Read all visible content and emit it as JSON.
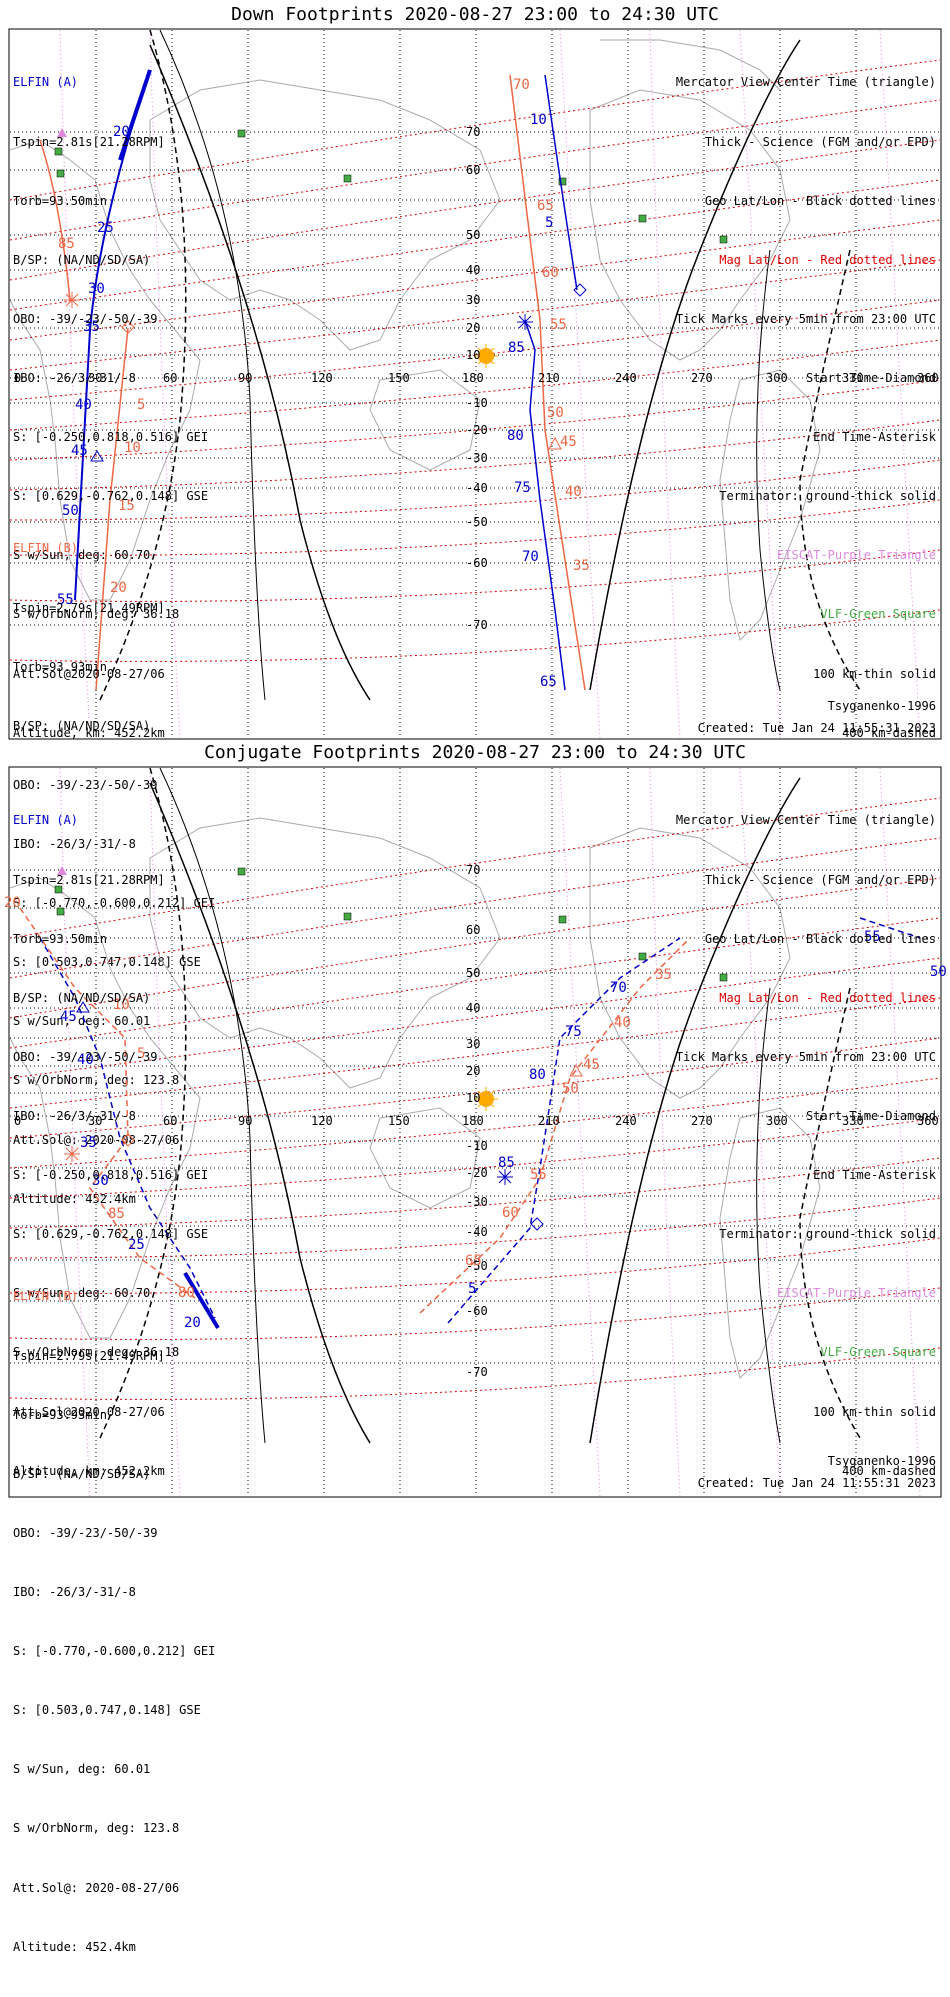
{
  "panels": [
    {
      "title": "Down Footprints 2020-08-27 23:00 to 24:30 UTC",
      "elfin_a": {
        "name": "ELFIN (A)",
        "lines": [
          "Tspin=2.81s[21.28RPM]",
          "Torb=93.50min",
          "B/SP: (NA/ND/SD/SA)",
          "OBO: -39/-23/-50/-39",
          "IBO: -26/3/-31/-8",
          "S: [-0.250,0.818,0.516] GEI",
          "S: [0.629,-0.762,0.148] GSE",
          "S w/Sun, deg: 60.70",
          "S w/OrbNorm, deg: 36.18",
          "Att.Sol@2020-08-27/06",
          "Altitude, km: 452.2km"
        ]
      },
      "elfin_b": {
        "name": "ELFIN (B)",
        "lines": [
          "Tspin=2.79s[21.49RPM]",
          "Torb=93.93min",
          "B/SP: (NA/ND/SD/SA)",
          "OBO: -39/-23/-50/-39",
          "IBO: -26/3/-31/-8",
          "S: [-0.770,-0.600,0.212] GEI",
          "S: [0.503,0.747,0.148] GSE",
          "S w/Sun, deg: 60.01",
          "S w/OrbNorm, deg: 123.8",
          "Att.Sol@: 2020-08-27/06",
          "Altitude: 452.4km"
        ]
      },
      "footer_left": "",
      "footer_right": [
        "Tsyganenko-1996",
        "Created: Tue Jan 24 11:55:31 2023"
      ]
    },
    {
      "title": "Conjugate Footprints 2020-08-27 23:00 to 24:30 UTC",
      "elfin_a": {
        "name": "ELFIN (A)",
        "lines": [
          "Tspin=2.81s[21.28RPM]",
          "Torb=93.50min",
          "B/SP: (NA/ND/SD/SA)",
          "OBO: -39/-23/-50/-39",
          "IBO: -26/3/-31/-8",
          "S: [-0.250,0.818,0.516] GEI",
          "S: [0.629,-0.762,0.148] GSE",
          "S w/Sun, deg: 60.70",
          "S w/OrbNorm, deg: 36.18",
          "Att.Sol@2020-08-27/06",
          "Altitude, km: 452.2km"
        ]
      },
      "elfin_b": {
        "name": "ELFIN (B)",
        "lines": [
          "Tspin=2.79s[21.49RPM]",
          "Torb=93.93min",
          "B/SP: (NA/ND/SD/SA)",
          "OBO: -39/-23/-50/-39",
          "IBO: -26/3/-31/-8",
          "S: [-0.770,-0.600,0.212] GEI",
          "S: [0.503,0.747,0.148] GSE",
          "S w/Sun, deg: 60.01",
          "S w/OrbNorm, deg: 123.8",
          "Att.Sol@: 2020-08-27/06",
          "Altitude: 452.4km"
        ]
      },
      "footer_right": [
        "Tsyganenko-1996",
        "Created: Tue Jan 24 11:55:31 2023"
      ]
    }
  ],
  "legend": [
    {
      "text": "Mercator View Center Time (triangle)",
      "color": "#000000"
    },
    {
      "text": "Thick - Science (FGM and/or EPD)",
      "color": "#000000"
    },
    {
      "text": "Geo Lat/Lon - Black dotted lines",
      "color": "#000000"
    },
    {
      "text": "Mag Lat/Lon - Red dotted lines",
      "color": "#dd0000"
    },
    {
      "text": "Tick Marks every 5min from 23:00 UTC",
      "color": "#000000"
    },
    {
      "text": "Start Time-Diamond",
      "color": "#000000"
    },
    {
      "text": "End Time-Asterisk",
      "color": "#000000"
    },
    {
      "text": "Terminator: ground-thick solid",
      "color": "#000000"
    },
    {
      "text": "EISCAT-Purple Triangle",
      "color": "#dd88dd"
    },
    {
      "text": "VLF-Green Square",
      "color": "#44aa44"
    },
    {
      "text": "100 km-thin solid",
      "color": "#000000"
    },
    {
      "text": "400 km-dashed",
      "color": "#000000"
    }
  ],
  "axes": {
    "lon_ticks": [
      "0",
      "30",
      "60",
      "90",
      "120",
      "150",
      "180",
      "210",
      "240",
      "270",
      "300",
      "330",
      "360"
    ],
    "lat_ticks": [
      "70",
      "60",
      "50",
      "40",
      "30",
      "20",
      "10",
      "0",
      "-10",
      "-20",
      "-30",
      "-40",
      "-50",
      "-60",
      "-70"
    ]
  },
  "colors": {
    "elfin_a": "#0000cc",
    "elfin_b": "#ee6644",
    "mag_grid": "#dd0000",
    "geo_grid": "#000000",
    "sun": "#ffaa00",
    "vlf": "#44aa44"
  },
  "track_labels": {
    "down_a": [
      "20",
      "25",
      "30",
      "35",
      "40",
      "45",
      "50",
      "55",
      "85",
      "80",
      "75",
      "70",
      "65",
      "10",
      "5"
    ],
    "down_b": [
      "85",
      "5",
      "10",
      "15",
      "20",
      "70",
      "65",
      "60",
      "55",
      "50",
      "45",
      "40",
      "35"
    ],
    "conj_a": [
      "45",
      "40",
      "35",
      "30",
      "25",
      "20",
      "85",
      "80",
      "75",
      "70",
      "5",
      "55",
      "50"
    ],
    "conj_b": [
      "10",
      "5",
      "85",
      "80",
      "20",
      "65",
      "60",
      "55",
      "45",
      "40",
      "35"
    ]
  }
}
